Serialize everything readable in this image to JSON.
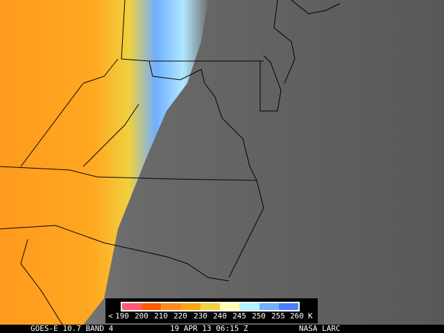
{
  "legend": {
    "less_than": "<",
    "ticks": [
      "190",
      "200",
      "210",
      "220",
      "230",
      "240",
      "245",
      "250",
      "255",
      "260"
    ],
    "unit": "K",
    "colors": [
      "#ff5a70",
      "#ff5a00",
      "#ff8a1e",
      "#ffa810",
      "#f0d040",
      "#ffffb0",
      "#b0f4ff",
      "#70b0ff",
      "#4a80ff"
    ]
  },
  "footer": {
    "satellite": "GOES-E 10.7 BAND 4",
    "datetime": "19 APR 13 06:15 Z",
    "credit": "NASA LARC"
  }
}
